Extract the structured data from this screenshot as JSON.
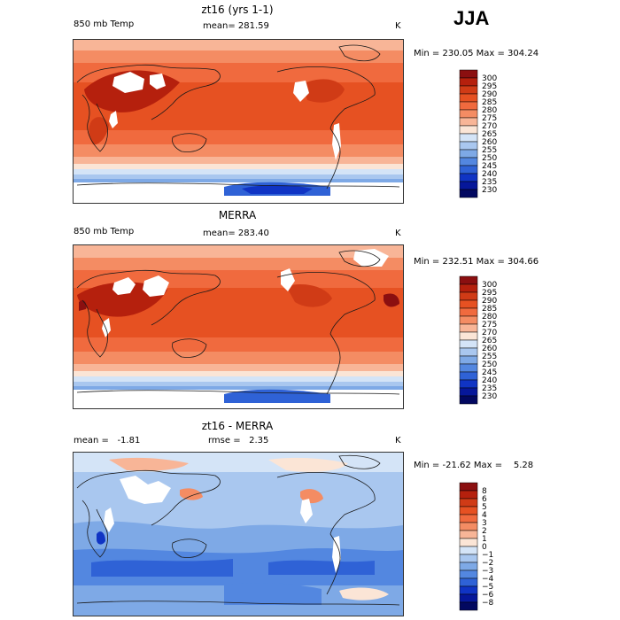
{
  "season": "JJA",
  "panels": [
    {
      "title": "zt16 (yrs 1-1)",
      "left_label": "850 mb Temp",
      "center_label": "mean= 281.59",
      "unit": "K",
      "minmax": "Min = 230.05 Max = 304.24"
    },
    {
      "title": "MERRA",
      "left_label": "850 mb Temp",
      "center_label": "mean= 283.40",
      "unit": "K",
      "minmax": "Min = 232.51 Max = 304.66"
    },
    {
      "title": "zt16 - MERRA",
      "left_label": "mean =   -1.81",
      "center_label": "rmse =   2.35",
      "unit": "K",
      "minmax": "Min = -21.62 Max =    5.28"
    }
  ],
  "chart_data": [
    {
      "type": "heatmap",
      "title": "zt16 (yrs 1-1)",
      "variable": "850 mb Temp",
      "unit": "K",
      "mean": 281.59,
      "min": 230.05,
      "max": 304.24,
      "colorbar_levels": [
        "300",
        "295",
        "290",
        "285",
        "280",
        "275",
        "270",
        "265",
        "260",
        "255",
        "250",
        "245",
        "240",
        "235",
        "230"
      ],
      "colorbar_colors": [
        "#8b0f10",
        "#b5200d",
        "#d03b16",
        "#e65122",
        "#f06a3e",
        "#f48c63",
        "#f8b597",
        "#fbe5d6",
        "#d4e4f7",
        "#a9c7ef",
        "#7ea9e6",
        "#5387e0",
        "#2f62d6",
        "#1034c4",
        "#06179a",
        "#020860"
      ]
    },
    {
      "type": "heatmap",
      "title": "MERRA",
      "variable": "850 mb Temp",
      "unit": "K",
      "mean": 283.4,
      "min": 232.51,
      "max": 304.66,
      "colorbar_levels": [
        "300",
        "295",
        "290",
        "285",
        "280",
        "275",
        "270",
        "265",
        "260",
        "255",
        "250",
        "245",
        "240",
        "235",
        "230"
      ],
      "colorbar_colors": [
        "#8b0f10",
        "#b5200d",
        "#d03b16",
        "#e65122",
        "#f06a3e",
        "#f48c63",
        "#f8b597",
        "#fbe5d6",
        "#d4e4f7",
        "#a9c7ef",
        "#7ea9e6",
        "#5387e0",
        "#2f62d6",
        "#1034c4",
        "#06179a",
        "#020860"
      ]
    },
    {
      "type": "heatmap",
      "title": "zt16 - MERRA",
      "unit": "K",
      "mean": -1.81,
      "rmse": 2.35,
      "min": -21.62,
      "max": 5.28,
      "colorbar_levels": [
        "8",
        "6",
        "5",
        "4",
        "3",
        "2",
        "1",
        "0",
        "−1",
        "−2",
        "−3",
        "−4",
        "−5",
        "−6",
        "−8"
      ],
      "colorbar_colors": [
        "#8b0f10",
        "#b5200d",
        "#d03b16",
        "#e65122",
        "#f06a3e",
        "#f48c63",
        "#f8b597",
        "#fbe5d6",
        "#d4e4f7",
        "#a9c7ef",
        "#7ea9e6",
        "#5387e0",
        "#2f62d6",
        "#1034c4",
        "#06179a",
        "#020860"
      ]
    }
  ]
}
